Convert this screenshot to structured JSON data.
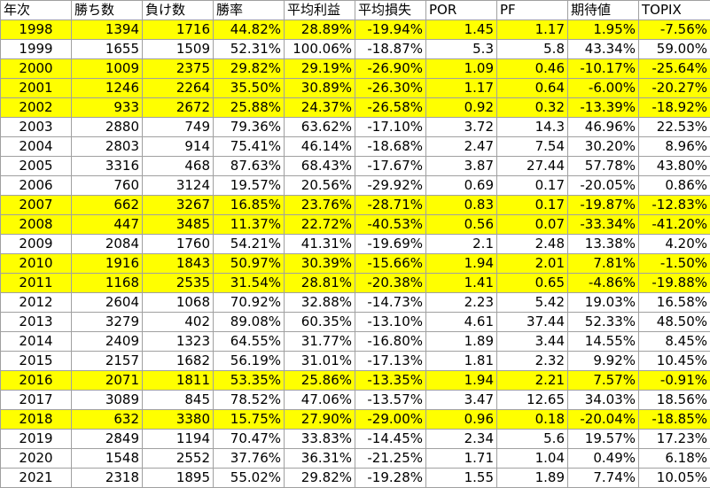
{
  "table": {
    "header": [
      "年次",
      "勝ち数",
      "負け数",
      "勝率",
      "平均利益",
      "平均損失",
      "POR",
      "PF",
      "期待値",
      "TOPIX"
    ],
    "rows": [
      {
        "cells": [
          "1998",
          "1394",
          "1716",
          "44.82%",
          "28.89%",
          "-19.94%",
          "1.45",
          "1.17",
          "1.95%",
          "-7.56%"
        ],
        "fill": "#ffff00"
      },
      {
        "cells": [
          "1999",
          "1655",
          "1509",
          "52.31%",
          "100.06%",
          "-18.87%",
          "5.3",
          "5.8",
          "43.34%",
          "59.00%"
        ],
        "fill": "#ffffff"
      },
      {
        "cells": [
          "2000",
          "1009",
          "2375",
          "29.82%",
          "29.19%",
          "-26.90%",
          "1.09",
          "0.46",
          "-10.17%",
          "-25.64%"
        ],
        "fill": "#ffff00"
      },
      {
        "cells": [
          "2001",
          "1246",
          "2264",
          "35.50%",
          "30.89%",
          "-26.30%",
          "1.17",
          "0.64",
          "-6.00%",
          "-20.27%"
        ],
        "fill": "#ffff00"
      },
      {
        "cells": [
          "2002",
          "933",
          "2672",
          "25.88%",
          "24.37%",
          "-26.58%",
          "0.92",
          "0.32",
          "-13.39%",
          "-18.92%"
        ],
        "fill": "#ffff00"
      },
      {
        "cells": [
          "2003",
          "2880",
          "749",
          "79.36%",
          "63.62%",
          "-17.10%",
          "3.72",
          "14.3",
          "46.96%",
          "22.53%"
        ],
        "fill": "#ffffff"
      },
      {
        "cells": [
          "2004",
          "2803",
          "914",
          "75.41%",
          "46.14%",
          "-18.68%",
          "2.47",
          "7.54",
          "30.20%",
          "8.96%"
        ],
        "fill": "#ffffff"
      },
      {
        "cells": [
          "2005",
          "3316",
          "468",
          "87.63%",
          "68.43%",
          "-17.67%",
          "3.87",
          "27.44",
          "57.78%",
          "43.80%"
        ],
        "fill": "#ffffff"
      },
      {
        "cells": [
          "2006",
          "760",
          "3124",
          "19.57%",
          "20.56%",
          "-29.92%",
          "0.69",
          "0.17",
          "-20.05%",
          "0.86%"
        ],
        "fill": "#ffffff"
      },
      {
        "cells": [
          "2007",
          "662",
          "3267",
          "16.85%",
          "23.76%",
          "-28.71%",
          "0.83",
          "0.17",
          "-19.87%",
          "-12.83%"
        ],
        "fill": "#ffff00"
      },
      {
        "cells": [
          "2008",
          "447",
          "3485",
          "11.37%",
          "22.72%",
          "-40.53%",
          "0.56",
          "0.07",
          "-33.34%",
          "-41.20%"
        ],
        "fill": "#ffff00"
      },
      {
        "cells": [
          "2009",
          "2084",
          "1760",
          "54.21%",
          "41.31%",
          "-19.69%",
          "2.1",
          "2.48",
          "13.38%",
          "4.20%"
        ],
        "fill": "#ffffff"
      },
      {
        "cells": [
          "2010",
          "1916",
          "1843",
          "50.97%",
          "30.39%",
          "-15.66%",
          "1.94",
          "2.01",
          "7.81%",
          "-1.50%"
        ],
        "fill": "#ffff00"
      },
      {
        "cells": [
          "2011",
          "1168",
          "2535",
          "31.54%",
          "28.81%",
          "-20.38%",
          "1.41",
          "0.65",
          "-4.86%",
          "-19.88%"
        ],
        "fill": "#ffff00"
      },
      {
        "cells": [
          "2012",
          "2604",
          "1068",
          "70.92%",
          "32.88%",
          "-14.73%",
          "2.23",
          "5.42",
          "19.03%",
          "16.58%"
        ],
        "fill": "#ffffff"
      },
      {
        "cells": [
          "2013",
          "3279",
          "402",
          "89.08%",
          "60.35%",
          "-13.10%",
          "4.61",
          "37.44",
          "52.33%",
          "48.50%"
        ],
        "fill": "#ffffff"
      },
      {
        "cells": [
          "2014",
          "2409",
          "1323",
          "64.55%",
          "31.77%",
          "-16.80%",
          "1.89",
          "3.44",
          "14.55%",
          "8.45%"
        ],
        "fill": "#ffffff"
      },
      {
        "cells": [
          "2015",
          "2157",
          "1682",
          "56.19%",
          "31.01%",
          "-17.13%",
          "1.81",
          "2.32",
          "9.92%",
          "10.45%"
        ],
        "fill": "#ffffff"
      },
      {
        "cells": [
          "2016",
          "2071",
          "1811",
          "53.35%",
          "25.86%",
          "-13.35%",
          "1.94",
          "2.21",
          "7.57%",
          "-0.91%"
        ],
        "fill": "#ffff00"
      },
      {
        "cells": [
          "2017",
          "3089",
          "845",
          "78.52%",
          "47.06%",
          "-13.57%",
          "3.47",
          "12.65",
          "34.03%",
          "18.56%"
        ],
        "fill": "#ffffff"
      },
      {
        "cells": [
          "2018",
          "632",
          "3380",
          "15.75%",
          "27.90%",
          "-29.00%",
          "0.96",
          "0.18",
          "-20.04%",
          "-18.85%"
        ],
        "fill": "#ffff00"
      },
      {
        "cells": [
          "2019",
          "2849",
          "1194",
          "70.47%",
          "33.83%",
          "-14.45%",
          "2.34",
          "5.6",
          "19.57%",
          "17.23%"
        ],
        "fill": "#ffffff"
      },
      {
        "cells": [
          "2020",
          "1548",
          "2552",
          "37.76%",
          "36.31%",
          "-21.25%",
          "1.71",
          "1.04",
          "0.49%",
          "6.18%"
        ],
        "fill": "#ffffff"
      },
      {
        "cells": [
          "2021",
          "2318",
          "1895",
          "55.02%",
          "29.82%",
          "-19.28%",
          "1.55",
          "1.89",
          "7.74%",
          "10.05%"
        ],
        "fill": "#ffffff"
      }
    ]
  }
}
